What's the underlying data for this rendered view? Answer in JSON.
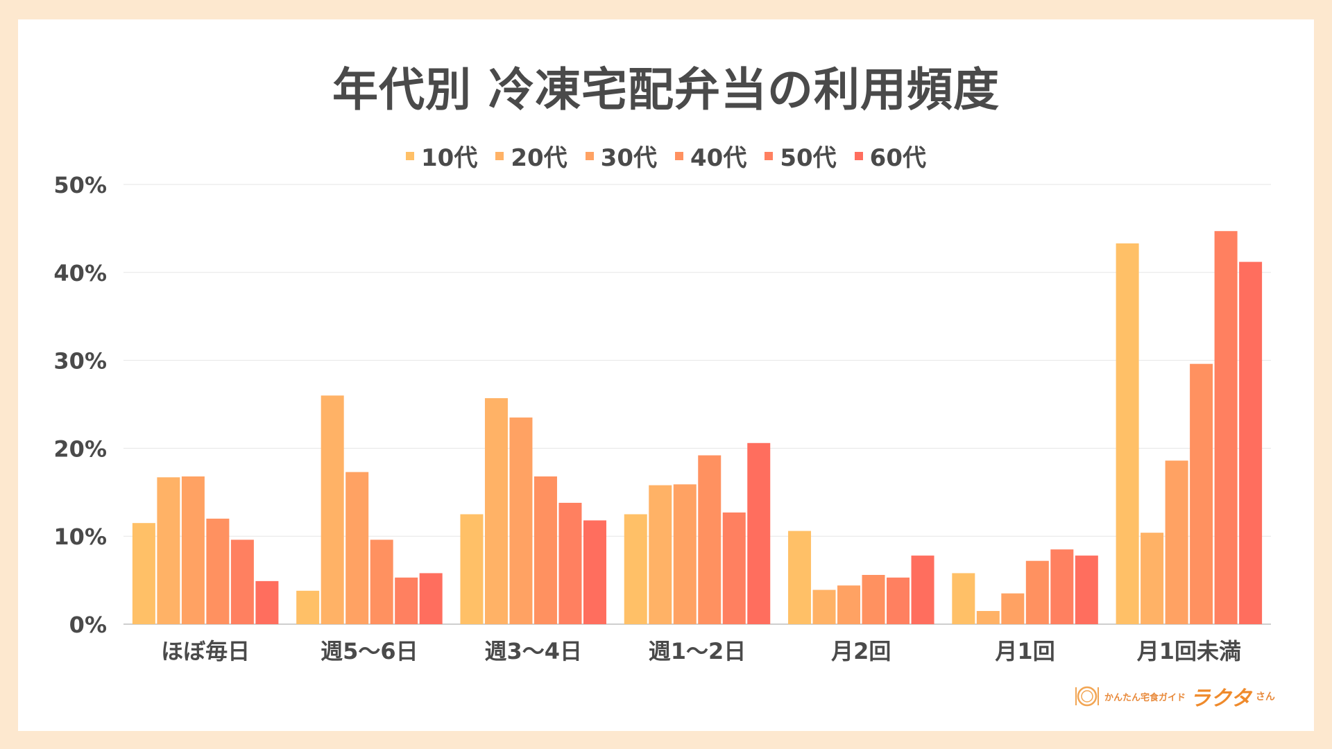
{
  "title": "年代別 冷凍宅配弁当の利用頻度",
  "logo": {
    "icon": "plate-cutlery-icon",
    "sub": "かんたん宅食ガイド",
    "main": "ラクタ",
    "suffix": "さん"
  },
  "colors": {
    "background": "#fde8cf",
    "text": "#4a4a4a",
    "series": [
      "#ffc067",
      "#ffb266",
      "#ffa263",
      "#ff9160",
      "#ff8060",
      "#ff6e5e"
    ]
  },
  "chart_data": {
    "type": "bar",
    "title": "年代別 冷凍宅配弁当の利用頻度",
    "categories": [
      "ほぼ毎日",
      "週5〜6日",
      "週3〜4日",
      "週1〜2日",
      "月2回",
      "月1回",
      "月1回未満"
    ],
    "ylim": [
      0,
      50
    ],
    "yticks": [
      "0%",
      "10%",
      "20%",
      "30%",
      "40%",
      "50%"
    ],
    "ytick_values": [
      0,
      10,
      20,
      30,
      40,
      50
    ],
    "grid": true,
    "legend_position": "top-center",
    "series": [
      {
        "name": "10代",
        "values": [
          11.5,
          3.8,
          12.5,
          12.5,
          10.6,
          5.8,
          43.3
        ]
      },
      {
        "name": "20代",
        "values": [
          16.7,
          26.0,
          25.7,
          15.8,
          3.9,
          1.5,
          10.4
        ]
      },
      {
        "name": "30代",
        "values": [
          16.8,
          17.3,
          23.5,
          15.9,
          4.4,
          3.5,
          18.6
        ]
      },
      {
        "name": "40代",
        "values": [
          12.0,
          9.6,
          16.8,
          19.2,
          5.6,
          7.2,
          29.6
        ]
      },
      {
        "name": "50代",
        "values": [
          9.6,
          5.3,
          13.8,
          12.7,
          5.3,
          8.5,
          44.7
        ]
      },
      {
        "name": "60代",
        "values": [
          4.9,
          5.8,
          11.8,
          20.6,
          7.8,
          7.8,
          41.2
        ]
      }
    ]
  }
}
